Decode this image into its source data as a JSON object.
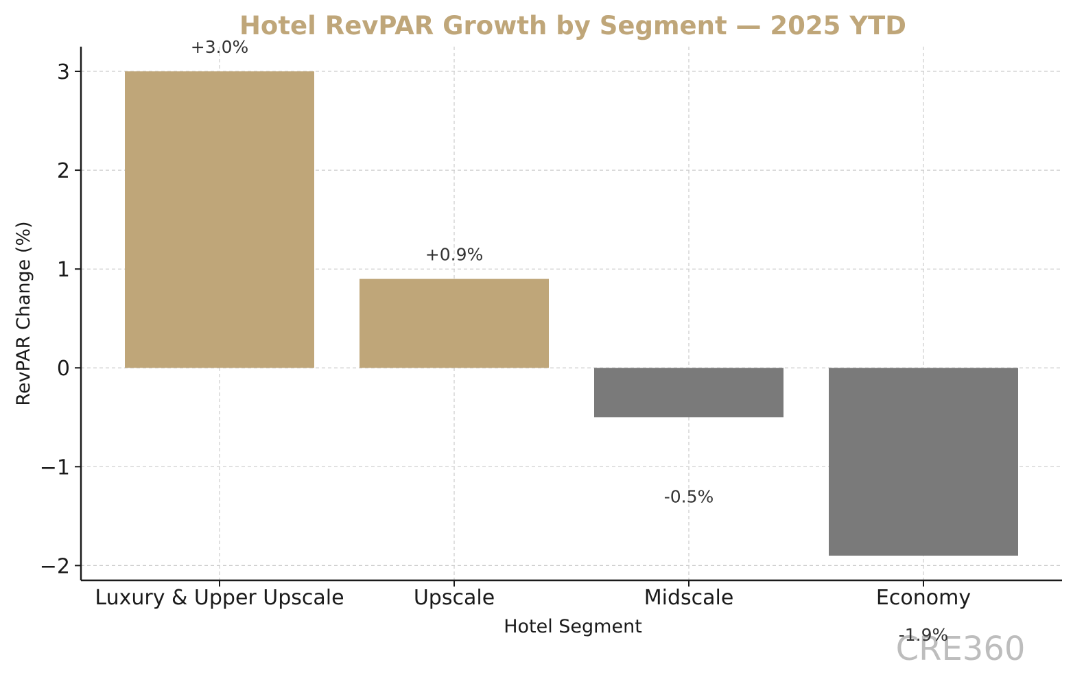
{
  "chart_data": {
    "type": "bar",
    "title": "Hotel RevPAR Growth by Segment — 2025 YTD",
    "xlabel": "Hotel Segment",
    "ylabel": "RevPAR Change (%)",
    "categories": [
      "Luxury & Upper Upscale",
      "Upscale",
      "Midscale",
      "Economy"
    ],
    "values": [
      3.0,
      0.9,
      -0.5,
      -1.9
    ],
    "data_labels": [
      "+3.0%",
      "+0.9%",
      "-0.5%",
      "-1.9%"
    ],
    "ylim": [
      -2.15,
      3.25
    ],
    "yticks": [
      3,
      2,
      1,
      0,
      -1,
      -2
    ],
    "ytick_labels": [
      "3",
      "2",
      "1",
      "0",
      "−1",
      "−2"
    ],
    "grid": true,
    "colors": {
      "positive": "#bfa679",
      "negative": "#7a7a7a",
      "title": "#bfa679",
      "grid": "#cccccc",
      "axis": "#1a1a1a",
      "watermark": "#bdbdbd"
    }
  },
  "watermark": "CRE360"
}
